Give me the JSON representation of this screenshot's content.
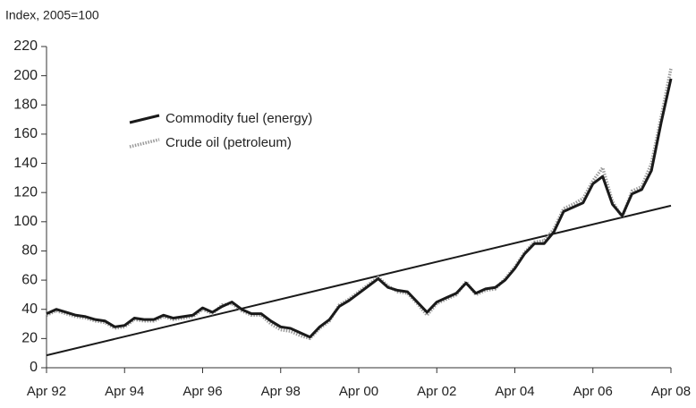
{
  "chart_data": {
    "type": "line",
    "y_axis_label": "Index, 2005=100",
    "x": [
      1992.25,
      1992.5,
      1992.75,
      1993.0,
      1993.25,
      1993.5,
      1993.75,
      1994.0,
      1994.25,
      1994.5,
      1994.75,
      1995.0,
      1995.25,
      1995.5,
      1995.75,
      1996.0,
      1996.25,
      1996.5,
      1996.75,
      1997.0,
      1997.25,
      1997.5,
      1997.75,
      1998.0,
      1998.25,
      1998.5,
      1998.75,
      1999.0,
      1999.25,
      1999.5,
      1999.75,
      2000.0,
      2000.25,
      2000.5,
      2000.75,
      2001.0,
      2001.25,
      2001.5,
      2001.75,
      2002.0,
      2002.25,
      2002.5,
      2002.75,
      2003.0,
      2003.25,
      2003.5,
      2003.75,
      2004.0,
      2004.25,
      2004.5,
      2004.75,
      2005.0,
      2005.25,
      2005.5,
      2005.75,
      2006.0,
      2006.25,
      2006.5,
      2006.75,
      2007.0,
      2007.25,
      2007.5,
      2007.75,
      2008.0,
      2008.25
    ],
    "series": [
      {
        "name": "Commodity fuel (energy)",
        "color": "#1a1a1a",
        "dashed": false,
        "values": [
          37,
          40,
          38,
          36,
          35,
          33,
          32,
          28,
          29,
          34,
          33,
          33,
          36,
          34,
          35,
          36,
          41,
          38,
          42,
          45,
          40,
          37,
          37,
          32,
          28,
          27,
          24,
          21,
          28,
          33,
          42,
          46,
          51,
          56,
          61,
          55,
          53,
          52,
          45,
          38,
          45,
          48,
          51,
          58,
          51,
          54,
          55,
          60,
          68,
          78,
          85,
          85,
          93,
          107,
          110,
          113,
          126,
          131,
          112,
          104,
          119,
          122,
          135,
          168,
          198
        ]
      },
      {
        "name": "Crude oil (petroleum)",
        "color": "#9a9a9a",
        "dashed": true,
        "values": [
          36,
          39,
          37,
          35,
          34,
          32,
          31,
          27,
          28,
          33,
          32,
          32,
          35,
          33,
          34,
          35,
          40,
          37,
          43,
          44,
          39,
          36,
          36,
          30,
          26,
          25,
          22,
          20,
          27,
          32,
          43,
          47,
          52,
          57,
          62,
          56,
          52,
          51,
          44,
          36,
          44,
          47,
          50,
          59,
          50,
          53,
          54,
          61,
          69,
          79,
          86,
          87,
          95,
          109,
          112,
          116,
          128,
          137,
          114,
          103,
          121,
          124,
          140,
          172,
          205
        ]
      }
    ],
    "trend_line": {
      "color": "#1a1a1a",
      "x": [
        1992.25,
        2008.25
      ],
      "values": [
        8.5,
        111
      ]
    },
    "xlim": [
      1992.25,
      2008.25
    ],
    "xticks": [
      {
        "value": 1992.25,
        "label": "Apr 92"
      },
      {
        "value": 1994.25,
        "label": "Apr 94"
      },
      {
        "value": 1996.25,
        "label": "Apr 96"
      },
      {
        "value": 1998.25,
        "label": "Apr 98"
      },
      {
        "value": 2000.25,
        "label": "Apr 00"
      },
      {
        "value": 2002.25,
        "label": "Apr 02"
      },
      {
        "value": 2004.25,
        "label": "Apr 04"
      },
      {
        "value": 2006.25,
        "label": "Apr 06"
      },
      {
        "value": 2008.25,
        "label": "Apr 08"
      }
    ],
    "ylim": [
      0,
      220
    ],
    "yticks": [
      0,
      20,
      40,
      60,
      80,
      100,
      120,
      140,
      160,
      180,
      200,
      220
    ],
    "grid": false,
    "legend": "upper-left"
  }
}
